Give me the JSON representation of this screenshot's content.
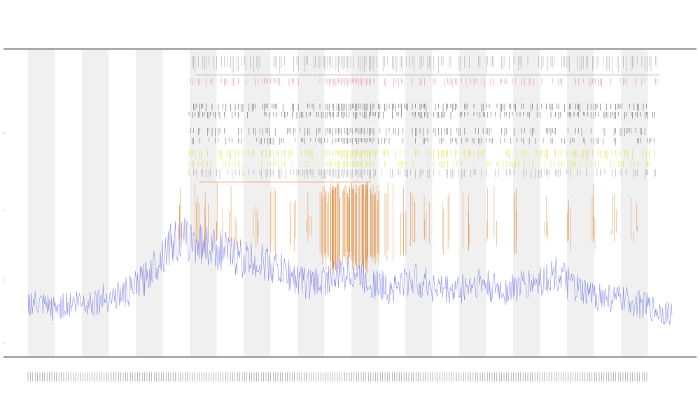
{
  "chart_data": {
    "type": "line",
    "title_lines": [],
    "xlabel": "",
    "ylabel": "",
    "grid": "alternating-vertical-bands",
    "legend_placement": "left",
    "legend": [],
    "track_labels": [],
    "colors": {
      "trace": "#6b6fe0",
      "orange": "#e07a1e",
      "yellow": "#d8d820",
      "red": "#e05050",
      "dark": "#222222",
      "band": "#f0f0f0",
      "axis": "#333333"
    },
    "series": [
      {
        "role": "main-trace",
        "x_fraction": [
          0.0,
          0.02,
          0.04,
          0.06,
          0.08,
          0.1,
          0.12,
          0.14,
          0.16,
          0.18,
          0.2,
          0.22,
          0.24,
          0.26,
          0.28,
          0.3,
          0.32,
          0.34,
          0.36,
          0.38,
          0.4,
          0.42,
          0.44,
          0.46,
          0.48,
          0.5,
          0.52,
          0.54,
          0.56,
          0.58,
          0.6,
          0.62,
          0.64,
          0.66,
          0.68,
          0.7,
          0.72,
          0.74,
          0.76,
          0.78,
          0.8,
          0.82,
          0.84,
          0.86,
          0.88,
          0.9,
          0.92,
          0.94,
          0.96,
          0.98,
          1.0
        ],
        "values": [
          0.12,
          0.1,
          0.09,
          0.11,
          0.12,
          0.12,
          0.14,
          0.15,
          0.17,
          0.22,
          0.3,
          0.38,
          0.4,
          0.39,
          0.37,
          0.35,
          0.33,
          0.31,
          0.3,
          0.28,
          0.25,
          0.22,
          0.2,
          0.22,
          0.24,
          0.26,
          0.23,
          0.2,
          0.18,
          0.2,
          0.22,
          0.2,
          0.18,
          0.17,
          0.19,
          0.21,
          0.18,
          0.17,
          0.19,
          0.2,
          0.22,
          0.25,
          0.2,
          0.16,
          0.15,
          0.14,
          0.13,
          0.12,
          0.1,
          0.08,
          0.07
        ]
      },
      {
        "role": "orange-spikes",
        "x_fraction": [
          0.24,
          0.26,
          0.28,
          0.3,
          0.32,
          0.35,
          0.38,
          0.41,
          0.44,
          0.46,
          0.47,
          0.48,
          0.49,
          0.5,
          0.51,
          0.52,
          0.53,
          0.54,
          0.56,
          0.58,
          0.6,
          0.62,
          0.65,
          0.68,
          0.72,
          0.76,
          0.8,
          0.84,
          0.88,
          0.91,
          0.94
        ],
        "values": [
          0.45,
          0.55,
          0.6,
          0.4,
          0.5,
          0.45,
          0.6,
          0.5,
          0.35,
          0.75,
          0.85,
          0.9,
          0.8,
          0.7,
          0.85,
          0.95,
          0.8,
          0.75,
          0.7,
          0.6,
          0.5,
          0.45,
          0.55,
          0.5,
          0.45,
          0.55,
          0.4,
          0.5,
          0.45,
          0.4,
          0.35
        ]
      }
    ]
  }
}
